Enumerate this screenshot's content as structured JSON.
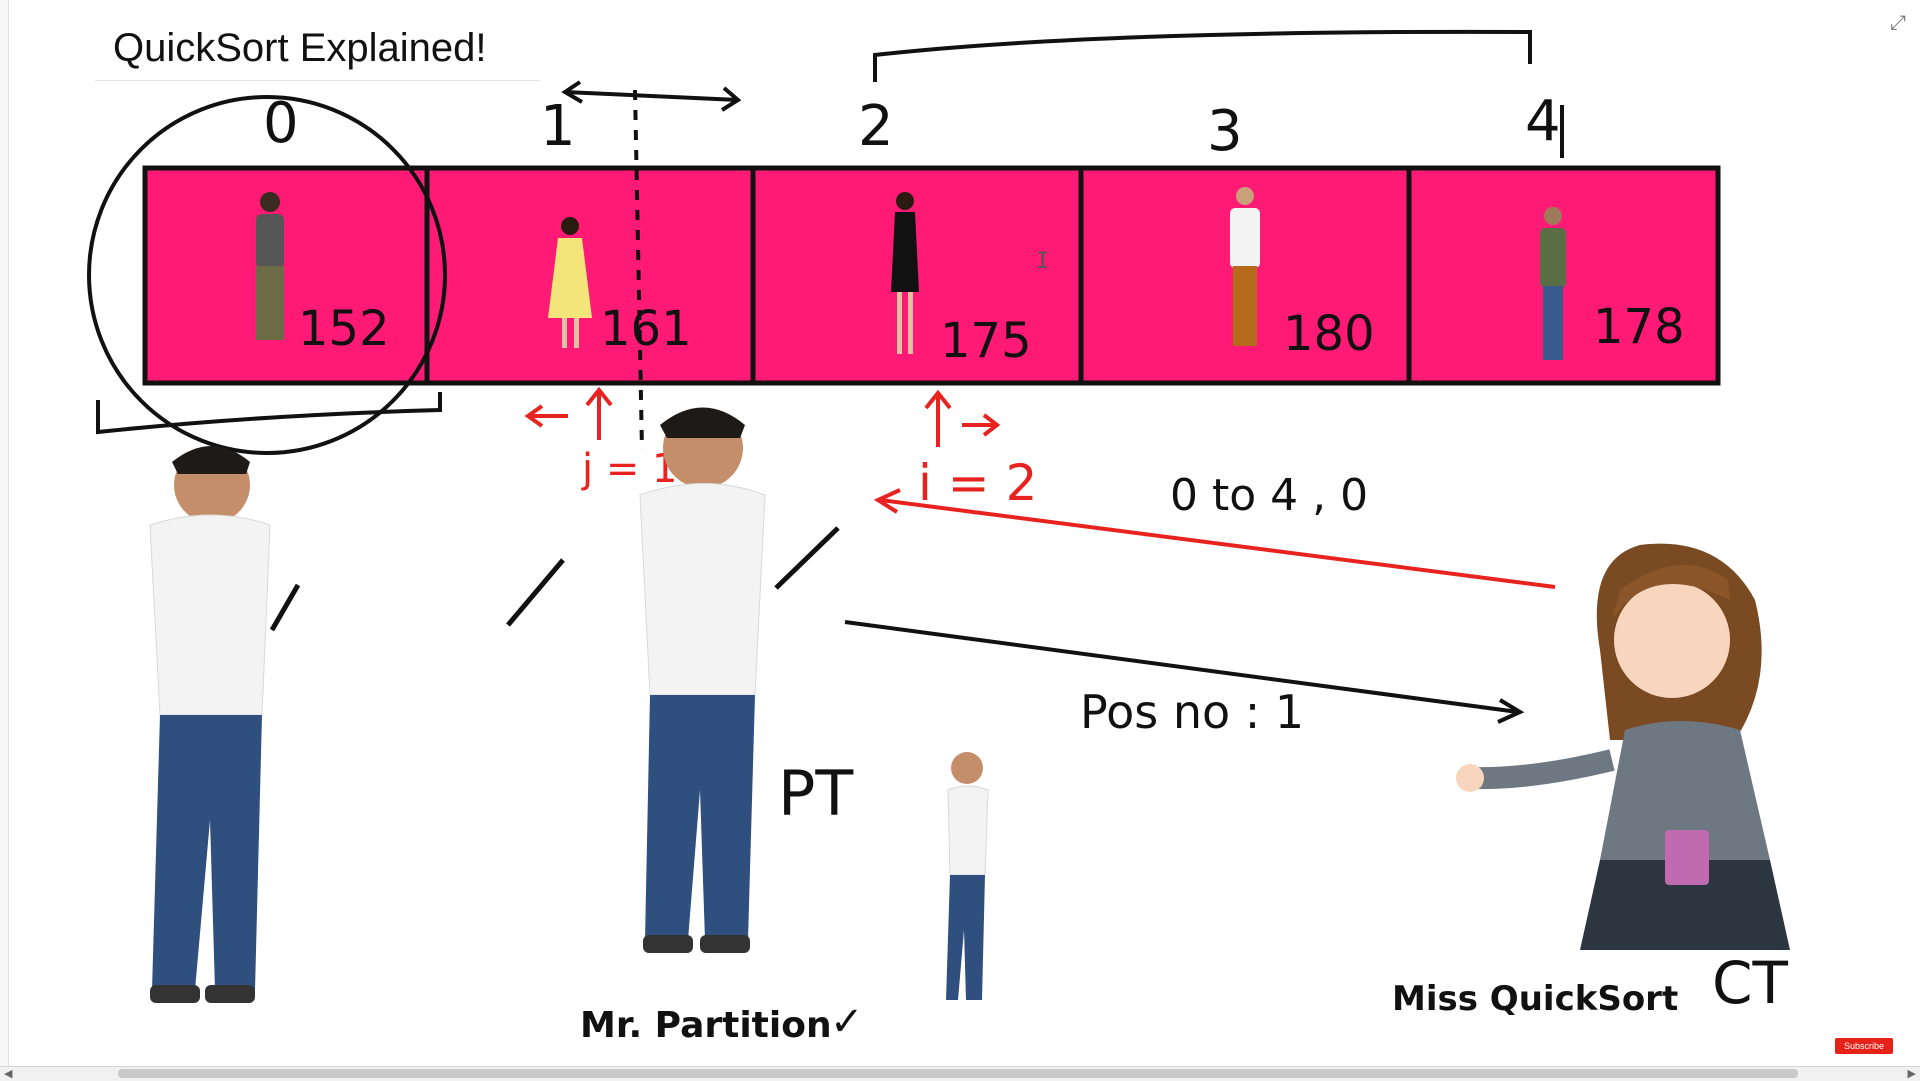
{
  "slide": {
    "title": "QuickSort Explained!",
    "indices": [
      "0",
      "1",
      "2",
      "3",
      "4"
    ],
    "heights": [
      "152",
      "161",
      "175",
      "180",
      "178"
    ],
    "pointer_j": "j = 1",
    "pointer_i": "i = 2",
    "range_note": "0 to 4 , 0",
    "return_note": "Pos no : 1",
    "pt_tag": "PT",
    "ct_tag": "CT",
    "partition_caption": "Mr. Partition",
    "partition_check": "✓",
    "quicksort_caption": "Miss QuickSort"
  },
  "colors": {
    "cell_fill": "#ff1a75",
    "cell_border": "#111111",
    "annotation_red": "#e8231f",
    "ink": "#111111"
  },
  "ui": {
    "expand_icon": "⤢",
    "subscribe_label": "Subscribe"
  }
}
